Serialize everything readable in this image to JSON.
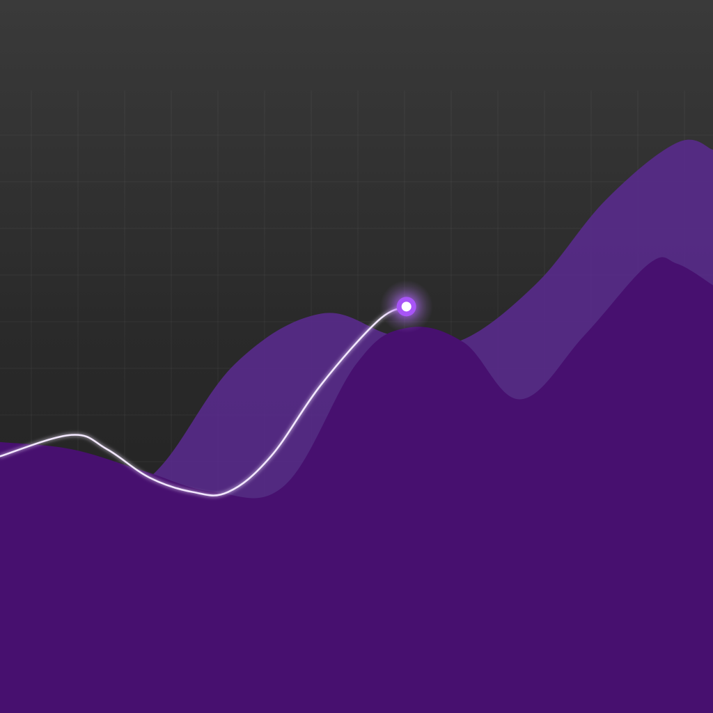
{
  "chart_data": {
    "type": "area",
    "title": "",
    "xlabel": "",
    "ylabel": "",
    "grid": true,
    "legend": "none",
    "xlim": [
      0,
      100
    ],
    "ylim": [
      0,
      100
    ],
    "series": [
      {
        "kind": "area",
        "color": "#5a2a91",
        "opacity": 0.85,
        "x": [
          0,
          12,
          22,
          33,
          45,
          55,
          64,
          75,
          85,
          95,
          100
        ],
        "y": [
          30,
          28,
          34,
          49,
          56,
          53,
          52,
          60,
          72,
          80,
          79
        ]
      },
      {
        "kind": "area",
        "color": "#47106f",
        "opacity": 1.0,
        "x": [
          0,
          10,
          20,
          30,
          40,
          50,
          57,
          65,
          73,
          82,
          91,
          95,
          100
        ],
        "y": [
          38,
          37,
          34,
          31,
          32,
          49,
          54,
          52,
          44,
          53,
          63,
          63,
          60
        ]
      },
      {
        "kind": "line",
        "color": "#f3e8ff",
        "x": [
          0,
          10,
          15,
          21,
          27,
          32,
          38,
          45,
          53,
          57
        ],
        "y": [
          36,
          39,
          37,
          33,
          31,
          31,
          36,
          46,
          55,
          57
        ]
      }
    ],
    "highlight_point": {
      "x": 57,
      "y": 57,
      "color": "#a855f7"
    }
  }
}
